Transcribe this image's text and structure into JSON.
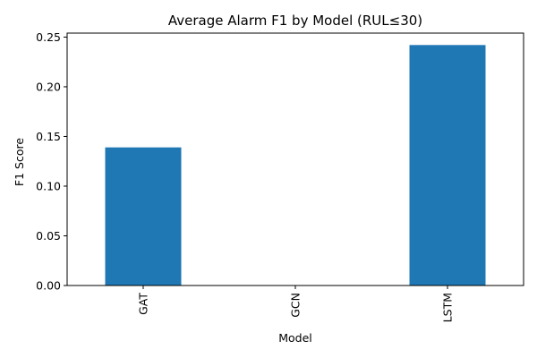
{
  "chart_data": {
    "type": "bar",
    "title": "Average Alarm F1 by Model (RUL≤30)",
    "xlabel": "Model",
    "ylabel": "F1 Score",
    "categories": [
      "GAT",
      "GCN",
      "LSTM"
    ],
    "values": [
      0.139,
      0.0,
      0.242
    ],
    "ylim": [
      0,
      0.254
    ],
    "yticks": [
      "0.00",
      "0.05",
      "0.10",
      "0.15",
      "0.20",
      "0.25"
    ],
    "grid": false,
    "legend": "none",
    "bar_color": "#1f77b4"
  }
}
